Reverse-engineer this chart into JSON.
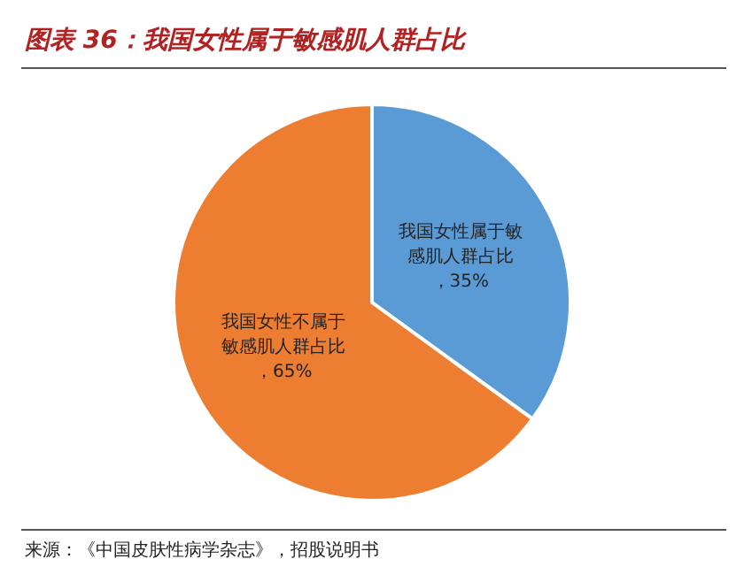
{
  "chart_data": {
    "type": "pie",
    "title": "图表 36：我国女性属于敏感肌人群占比",
    "categories": [
      "我国女性属于敏感肌人群占比",
      "我国女性不属于敏感肌人群占比"
    ],
    "values": [
      35,
      65
    ],
    "colors": [
      "#5b9bd5",
      "#ed7d31"
    ],
    "value_labels": [
      "，35%",
      "，65%"
    ],
    "legend": false,
    "annotations": [
      "来源：《中国皮肤性病学杂志》，招股说明书"
    ]
  }
}
